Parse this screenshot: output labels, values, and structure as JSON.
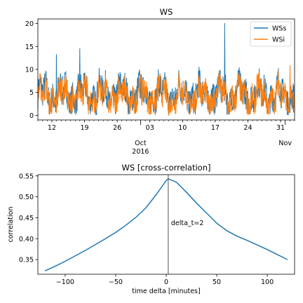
{
  "chart_data": [
    {
      "type": "line",
      "title": "WS",
      "xlabel": "",
      "ylabel": "",
      "ylim": [
        -1,
        21
      ],
      "grid": false,
      "legend_placement": "top-right",
      "x_range": [
        "2016-09-09",
        "2016-11-03"
      ],
      "x_ticks": [
        "12",
        "19",
        "26",
        "03",
        "10",
        "17",
        "24",
        "31"
      ],
      "x_tick_dates": [
        "2016-09-12",
        "2016-09-19",
        "2016-09-26",
        "2016-10-03",
        "2016-10-10",
        "2016-10-17",
        "2016-10-24",
        "2016-10-31"
      ],
      "x_major_labels": [
        {
          "date": "2016-10-01",
          "label": "Oct",
          "year": "2016"
        },
        {
          "date": "2016-11-01",
          "label": "Nov",
          "year": ""
        }
      ],
      "y_ticks": [
        0,
        5,
        10,
        15,
        20
      ],
      "series": [
        {
          "name": "WSs",
          "color": "#1f77b4"
        },
        {
          "name": "WSi",
          "color": "#ff7f0e"
        }
      ],
      "noise_description": "dense high-frequency wind speed traces (omitted individual samples)",
      "key_points": [
        {
          "series": "WSs",
          "x": "2016-10-19",
          "y": 20.1
        },
        {
          "series": "WSi",
          "x": "2016-11-02",
          "y": 10.9
        },
        {
          "series": "WSs",
          "x": "2016-09-18",
          "y": 14.6
        },
        {
          "series": "WSs",
          "x": "2016-09-13",
          "y": 13.3
        }
      ]
    },
    {
      "type": "line",
      "title": "WS [cross-correlation]",
      "xlabel": "time delta [minutes]",
      "ylabel": "correlation",
      "xlim": [
        -127,
        127
      ],
      "ylim": [
        0.315,
        0.553
      ],
      "x_ticks": [
        -100,
        -50,
        0,
        50,
        100
      ],
      "y_ticks": [
        0.35,
        0.4,
        0.45,
        0.5,
        0.55
      ],
      "y_tick_labels": [
        "0.35",
        "0.40",
        "0.45",
        "0.50",
        "0.55"
      ],
      "grid": false,
      "color": "#1f77b4",
      "vline": {
        "x": 2,
        "label": "delta_t=2",
        "color": "#555555"
      },
      "series": [
        {
          "name": "",
          "x": [
            -120,
            -110,
            -100,
            -90,
            -80,
            -70,
            -60,
            -50,
            -40,
            -30,
            -20,
            -10,
            0,
            2,
            10,
            20,
            30,
            40,
            50,
            60,
            70,
            80,
            90,
            100,
            110,
            120
          ],
          "values": [
            0.323,
            0.334,
            0.346,
            0.359,
            0.372,
            0.386,
            0.4,
            0.415,
            0.432,
            0.451,
            0.474,
            0.505,
            0.539,
            0.543,
            0.535,
            0.511,
            0.485,
            0.461,
            0.437,
            0.419,
            0.406,
            0.396,
            0.385,
            0.374,
            0.362,
            0.35
          ]
        }
      ]
    }
  ]
}
